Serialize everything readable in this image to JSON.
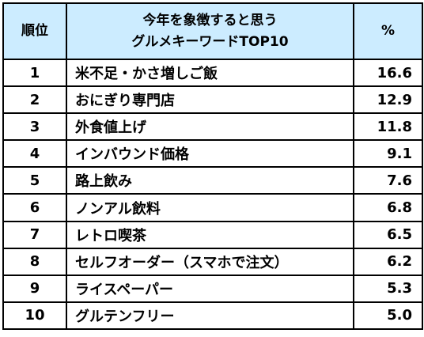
{
  "header": {
    "rank": "順位",
    "title_line1": "今年を象徴すると思う",
    "title_line2": "グルメキーワードTOP10",
    "percent": "%"
  },
  "rows": [
    {
      "rank": "1",
      "keyword": "米不足・かさ増しご飯",
      "percent": "16.6"
    },
    {
      "rank": "2",
      "keyword": "おにぎり専門店",
      "percent": "12.9"
    },
    {
      "rank": "3",
      "keyword": "外食値上げ",
      "percent": "11.8"
    },
    {
      "rank": "4",
      "keyword": "インバウンド価格",
      "percent": "9.1"
    },
    {
      "rank": "5",
      "keyword": "路上飲み",
      "percent": "7.6"
    },
    {
      "rank": "6",
      "keyword": "ノンアル飲料",
      "percent": "6.8"
    },
    {
      "rank": "7",
      "keyword": "レトロ喫茶",
      "percent": "6.5"
    },
    {
      "rank": "8",
      "keyword": "セルフオーダー（スマホで注文）",
      "percent": "6.2"
    },
    {
      "rank": "9",
      "keyword": "ライスペーパー",
      "percent": "5.3"
    },
    {
      "rank": "10",
      "keyword": "グルテンフリー",
      "percent": "5.0"
    }
  ],
  "colors": {
    "header_bg": "#ccecff",
    "border": "#000000"
  }
}
